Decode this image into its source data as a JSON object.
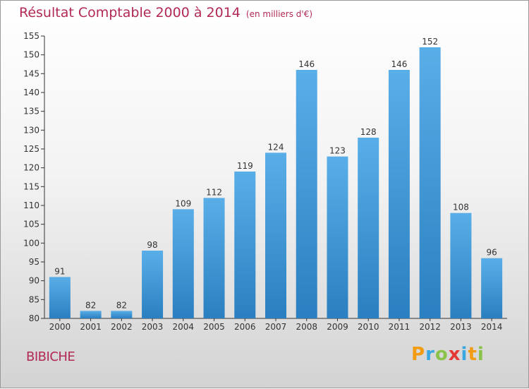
{
  "title": "Résultat Comptable 2000 à 2014",
  "subtitle": "(en milliers d'€)",
  "commune": "BIBICHE",
  "logo": {
    "letters": [
      "P",
      "r",
      "o",
      "x",
      "i",
      "t",
      "i"
    ]
  },
  "colors": {
    "title": "#b22a54",
    "bar_top": "#5aaee8",
    "bar_bottom": "#2a7fc0",
    "axis": "#333333"
  },
  "chart_data": {
    "type": "bar",
    "categories": [
      "2000",
      "2001",
      "2002",
      "2003",
      "2004",
      "2005",
      "2006",
      "2007",
      "2008",
      "2009",
      "2010",
      "2011",
      "2012",
      "2013",
      "2014"
    ],
    "values": [
      91,
      82,
      82,
      98,
      109,
      112,
      119,
      124,
      146,
      123,
      128,
      146,
      152,
      108,
      96
    ],
    "ylim": [
      80,
      155
    ],
    "yticks": [
      80,
      85,
      90,
      95,
      100,
      105,
      110,
      115,
      120,
      125,
      130,
      135,
      140,
      145,
      150,
      155
    ],
    "grid": false,
    "data_labels": true
  }
}
